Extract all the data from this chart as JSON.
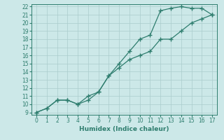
{
  "line1_x": [
    0,
    1,
    2,
    3,
    4,
    5,
    6,
    7,
    8,
    9,
    10,
    11,
    12,
    13,
    14,
    15,
    16,
    17
  ],
  "line1_y": [
    9,
    9.5,
    10.5,
    10.5,
    10,
    11,
    11.5,
    13.5,
    15,
    16.5,
    18,
    18.5,
    21.5,
    21.8,
    22,
    21.8,
    21.8,
    21
  ],
  "line2_x": [
    0,
    1,
    2,
    3,
    4,
    5,
    6,
    7,
    8,
    9,
    10,
    11,
    12,
    13,
    14,
    15,
    16,
    17
  ],
  "line2_y": [
    9,
    9.5,
    10.5,
    10.5,
    10,
    10.5,
    11.5,
    13.5,
    14.5,
    15.5,
    16,
    16.5,
    18,
    18,
    19,
    20,
    20.5,
    21
  ],
  "color": "#2e7d6e",
  "bg_color": "#cce8e8",
  "grid_color": "#aacccc",
  "xlabel": "Humidex (Indice chaleur)",
  "xlim": [
    -0.5,
    17.5
  ],
  "ylim": [
    8.7,
    22.3
  ],
  "xticks": [
    0,
    1,
    2,
    3,
    4,
    5,
    6,
    7,
    8,
    9,
    10,
    11,
    12,
    13,
    14,
    15,
    16,
    17
  ],
  "yticks": [
    9,
    10,
    11,
    12,
    13,
    14,
    15,
    16,
    17,
    18,
    19,
    20,
    21,
    22
  ],
  "marker": "+",
  "markersize": 4,
  "linewidth": 0.9,
  "tick_fontsize": 5.5,
  "xlabel_fontsize": 6.5
}
